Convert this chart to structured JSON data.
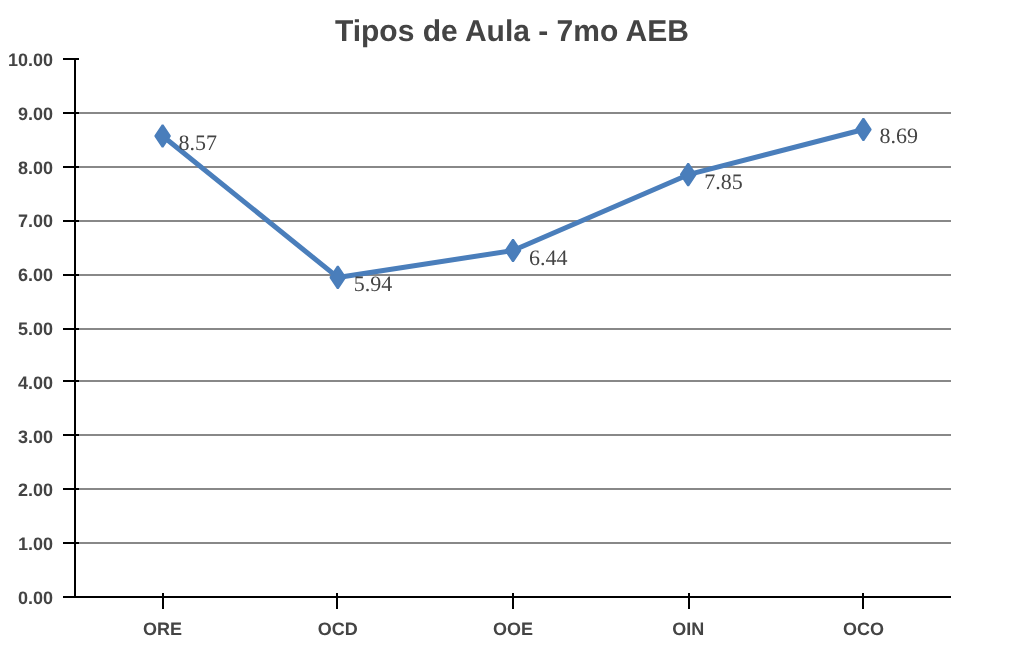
{
  "chart_data": {
    "type": "line",
    "title": "Tipos de Aula - 7mo AEB",
    "categories": [
      "ORE",
      "OCD",
      "OOE",
      "OIN",
      "OCO"
    ],
    "series": [
      {
        "color": "#4a7ebb",
        "values": [
          8.57,
          5.94,
          6.44,
          7.85,
          8.69
        ]
      }
    ],
    "ylim": [
      0,
      10
    ],
    "yticks": [
      {
        "value": 0,
        "label": "0.00"
      },
      {
        "value": 1,
        "label": "1.00"
      },
      {
        "value": 2,
        "label": "2.00"
      },
      {
        "value": 3,
        "label": "3.00"
      },
      {
        "value": 4,
        "label": "4.00"
      },
      {
        "value": 5,
        "label": "5.00"
      },
      {
        "value": 6,
        "label": "6.00"
      },
      {
        "value": 7,
        "label": "7.00"
      },
      {
        "value": 8,
        "label": "8.00"
      },
      {
        "value": 9,
        "label": "9.00"
      },
      {
        "value": 10,
        "label": "10.00"
      }
    ],
    "grid": "y",
    "marker": "diamond",
    "line_style": "solid",
    "data_labels": true
  }
}
